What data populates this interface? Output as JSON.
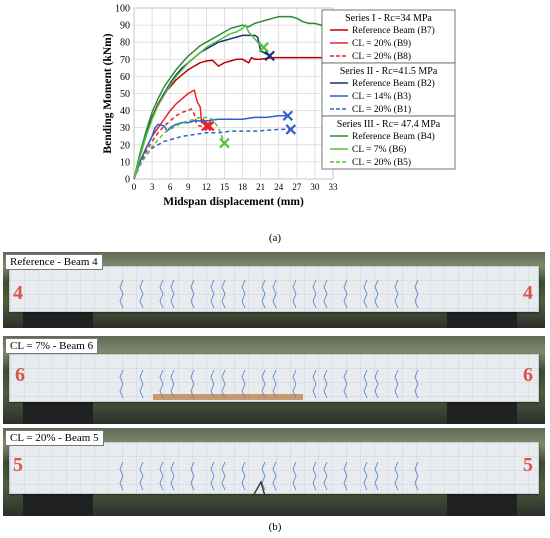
{
  "chart_data": {
    "type": "line",
    "xlabel": "Midspan displacement (mm)",
    "ylabel": "Bending Moment (kNm)",
    "xlim": [
      0,
      33
    ],
    "ylim": [
      0,
      100
    ],
    "xticks": [
      0,
      3,
      6,
      9,
      12,
      15,
      18,
      21,
      24,
      27,
      30,
      33
    ],
    "yticks": [
      0,
      10,
      20,
      30,
      40,
      50,
      60,
      70,
      80,
      90,
      100
    ],
    "grid": true,
    "legend_position": "right",
    "legend_groups": [
      {
        "title": "Series I - Rc=34 MPa",
        "entries": [
          {
            "label": "Reference Beam (B7)",
            "color": "#c00000",
            "dash": "solid"
          },
          {
            "label": "CL = 20% (B9)",
            "color": "#e8232a",
            "dash": "solid"
          },
          {
            "label": "CL = 20% (B8)",
            "color": "#e8232a",
            "dash": "dashed"
          }
        ]
      },
      {
        "title": "Series II - Rc=41.5 MPa",
        "entries": [
          {
            "label": "Reference Beam (B2)",
            "color": "#1f2f7a",
            "dash": "solid"
          },
          {
            "label": "CL = 14% (B3)",
            "color": "#2f5fc8",
            "dash": "solid"
          },
          {
            "label": "CL = 20% (B1)",
            "color": "#2f5fc8",
            "dash": "dashed"
          }
        ]
      },
      {
        "title": "Series III - Rc= 47.4 MPa",
        "entries": [
          {
            "label": "Reference Beam (B4)",
            "color": "#2e8b3a",
            "dash": "solid"
          },
          {
            "label": "CL = 7% (B6)",
            "color": "#52c23a",
            "dash": "solid"
          },
          {
            "label": "CL = 20% (B5)",
            "color": "#52c23a",
            "dash": "dashed"
          }
        ]
      }
    ],
    "series": [
      {
        "name": "Reference Beam (B7)",
        "color": "#c00000",
        "dash": "solid",
        "points": [
          [
            0,
            0
          ],
          [
            1,
            14
          ],
          [
            2,
            27
          ],
          [
            3,
            36
          ],
          [
            4,
            44
          ],
          [
            5,
            50
          ],
          [
            6,
            54
          ],
          [
            7,
            58
          ],
          [
            8,
            61
          ],
          [
            9,
            64
          ],
          [
            10,
            66
          ],
          [
            11,
            68
          ],
          [
            12,
            69
          ],
          [
            13,
            69.5
          ],
          [
            14,
            66
          ],
          [
            15,
            68
          ],
          [
            16,
            69
          ],
          [
            17,
            70
          ],
          [
            18,
            70
          ],
          [
            19,
            68
          ],
          [
            19.5,
            71
          ],
          [
            20,
            70
          ],
          [
            21,
            70
          ],
          [
            22,
            70.5
          ],
          [
            23,
            71
          ],
          [
            26,
            71
          ],
          [
            30,
            71
          ],
          [
            33,
            71
          ]
        ],
        "failure": null
      },
      {
        "name": "CL = 20% (B9)",
        "color": "#e8232a",
        "dash": "solid",
        "points": [
          [
            0,
            0
          ],
          [
            1,
            10
          ],
          [
            2,
            18
          ],
          [
            3,
            25
          ],
          [
            4,
            30
          ],
          [
            5,
            35
          ],
          [
            6,
            40
          ],
          [
            7,
            44
          ],
          [
            8,
            47
          ],
          [
            9,
            50
          ],
          [
            10,
            52
          ],
          [
            10.5,
            45
          ],
          [
            11,
            42
          ],
          [
            11.2,
            33
          ],
          [
            11.5,
            35
          ],
          [
            12,
            32
          ],
          [
            12.5,
            31
          ]
        ],
        "failure": [
          12.5,
          31
        ]
      },
      {
        "name": "CL = 20% (B8)",
        "color": "#e8232a",
        "dash": "dashed",
        "points": [
          [
            0,
            0
          ],
          [
            1,
            9
          ],
          [
            2,
            16
          ],
          [
            3,
            22
          ],
          [
            4,
            27
          ],
          [
            5,
            31
          ],
          [
            6,
            34
          ],
          [
            7,
            37
          ],
          [
            8,
            39
          ],
          [
            9,
            40
          ],
          [
            9.5,
            41
          ],
          [
            10,
            38
          ],
          [
            10.3,
            33
          ],
          [
            10.8,
            31
          ],
          [
            11.5,
            31
          ],
          [
            12,
            31
          ]
        ],
        "failure": [
          12,
          31
        ]
      },
      {
        "name": "Reference Beam (B2)",
        "color": "#1f2f7a",
        "dash": "solid",
        "points": [
          [
            0,
            0
          ],
          [
            1,
            14
          ],
          [
            2,
            26
          ],
          [
            3,
            36
          ],
          [
            4,
            43
          ],
          [
            5,
            50
          ],
          [
            6,
            56
          ],
          [
            7,
            61
          ],
          [
            8,
            65
          ],
          [
            9,
            68
          ],
          [
            10,
            71
          ],
          [
            11,
            74
          ],
          [
            12,
            76
          ],
          [
            13,
            78
          ],
          [
            14,
            80
          ],
          [
            15,
            81
          ],
          [
            16,
            82
          ],
          [
            17,
            83
          ],
          [
            18,
            84
          ],
          [
            19,
            84
          ],
          [
            20,
            84
          ],
          [
            20.5,
            83
          ],
          [
            21,
            75
          ],
          [
            22,
            73
          ],
          [
            22.5,
            72
          ]
        ],
        "failure": [
          22.5,
          72
        ]
      },
      {
        "name": "CL = 14% (B3)",
        "color": "#2f5fc8",
        "dash": "solid",
        "points": [
          [
            0,
            0
          ],
          [
            1,
            10
          ],
          [
            2,
            18
          ],
          [
            3,
            25
          ],
          [
            3.5,
            30
          ],
          [
            4,
            32
          ],
          [
            5,
            31
          ],
          [
            5.5,
            28
          ],
          [
            6,
            30
          ],
          [
            7,
            32
          ],
          [
            8,
            33
          ],
          [
            9,
            33
          ],
          [
            10,
            34
          ],
          [
            12,
            34
          ],
          [
            14,
            35
          ],
          [
            16,
            35
          ],
          [
            18,
            35
          ],
          [
            20,
            36
          ],
          [
            22,
            36
          ],
          [
            24,
            37
          ],
          [
            25.5,
            37
          ]
        ],
        "failure": [
          25.5,
          37
        ]
      },
      {
        "name": "CL = 20% (B1)",
        "color": "#2f5fc8",
        "dash": "dashed",
        "points": [
          [
            0,
            0
          ],
          [
            1,
            8
          ],
          [
            2,
            14
          ],
          [
            3,
            18
          ],
          [
            4,
            20
          ],
          [
            5,
            22
          ],
          [
            6,
            23
          ],
          [
            7,
            24
          ],
          [
            8,
            25
          ],
          [
            9,
            25.5
          ],
          [
            10,
            26
          ],
          [
            12,
            27
          ],
          [
            14,
            27
          ],
          [
            16,
            28
          ],
          [
            18,
            28
          ],
          [
            20,
            28
          ],
          [
            22,
            28.5
          ],
          [
            24,
            29
          ],
          [
            26,
            29
          ]
        ],
        "failure": [
          26,
          29
        ]
      },
      {
        "name": "Reference Beam (B4)",
        "color": "#2e8b3a",
        "dash": "solid",
        "points": [
          [
            0,
            0
          ],
          [
            1,
            15
          ],
          [
            2,
            28
          ],
          [
            3,
            39
          ],
          [
            4,
            47
          ],
          [
            5,
            54
          ],
          [
            6,
            59
          ],
          [
            7,
            64
          ],
          [
            8,
            68
          ],
          [
            9,
            72
          ],
          [
            10,
            75
          ],
          [
            11,
            78
          ],
          [
            12,
            80
          ],
          [
            13,
            82
          ],
          [
            14,
            84
          ],
          [
            15,
            86
          ],
          [
            16,
            88
          ],
          [
            17,
            89
          ],
          [
            18,
            90
          ],
          [
            19,
            89
          ],
          [
            20,
            91
          ],
          [
            21,
            92
          ],
          [
            22,
            93
          ],
          [
            23,
            94
          ],
          [
            24,
            95
          ],
          [
            25,
            95
          ],
          [
            26,
            95
          ],
          [
            27,
            94
          ],
          [
            28,
            92
          ],
          [
            29,
            91
          ],
          [
            30,
            91
          ],
          [
            31,
            90
          ],
          [
            32,
            87
          ]
        ],
        "failure": [
          32,
          87
        ]
      },
      {
        "name": "CL = 7% (B6)",
        "color": "#52c23a",
        "dash": "solid",
        "points": [
          [
            0,
            0
          ],
          [
            1,
            13
          ],
          [
            2,
            25
          ],
          [
            3,
            35
          ],
          [
            4,
            43
          ],
          [
            5,
            49
          ],
          [
            6,
            55
          ],
          [
            7,
            60
          ],
          [
            8,
            64
          ],
          [
            9,
            68
          ],
          [
            10,
            71
          ],
          [
            11,
            74
          ],
          [
            12,
            77
          ],
          [
            13,
            79
          ],
          [
            14,
            81
          ],
          [
            15,
            83
          ],
          [
            16,
            85
          ],
          [
            17,
            86
          ],
          [
            18,
            88
          ],
          [
            18.5,
            90
          ],
          [
            19,
            86
          ],
          [
            19.5,
            84
          ],
          [
            20,
            82
          ],
          [
            21,
            78
          ],
          [
            21.5,
            77
          ]
        ],
        "failure": [
          21.5,
          77
        ]
      },
      {
        "name": "CL = 20% (B5)",
        "color": "#52c23a",
        "dash": "dashed",
        "points": [
          [
            0,
            0
          ],
          [
            1,
            8
          ],
          [
            2,
            14
          ],
          [
            3,
            19
          ],
          [
            4,
            23
          ],
          [
            5,
            27
          ],
          [
            6,
            29
          ],
          [
            7,
            31
          ],
          [
            8,
            33
          ],
          [
            9,
            34
          ],
          [
            10,
            35
          ],
          [
            11,
            36
          ],
          [
            12,
            36
          ],
          [
            13,
            35
          ],
          [
            14,
            30
          ],
          [
            15,
            21
          ]
        ],
        "failure": [
          15,
          21
        ]
      }
    ]
  },
  "captions": {
    "a": "(a)",
    "b": "(b)"
  },
  "photos": [
    {
      "label": "Reference - Beam 4",
      "beam_number": "4"
    },
    {
      "label": "CL = 7% - Beam 6",
      "beam_number": "6"
    },
    {
      "label": "CL = 20% - Beam 5",
      "beam_number": "5"
    }
  ]
}
